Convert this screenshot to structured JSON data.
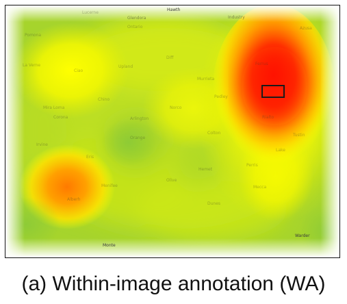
{
  "figure": {
    "caption": "(a) Within-image annotation (WA)"
  },
  "map": {
    "labels_major": [
      "Hawth",
      "Glendora",
      "Industry",
      "Monte",
      "Warder"
    ],
    "labels_minor": [
      "Lucerne",
      "Pomona",
      "Ontario",
      "Azusa",
      "La Verne",
      "Ciao",
      "Upland",
      "Diff",
      "Murrieta",
      "Ferrus",
      "Pedley",
      "Chino",
      "Mira Loma",
      "Norco",
      "Corona",
      "Arlington",
      "Rialto",
      "Colton",
      "Orange",
      "Tustin",
      "Irvine",
      "Lake",
      "Eris",
      "Perris",
      "Hemet",
      "Olive",
      "Menifee",
      "Mecca",
      "Dunes",
      "Alberh"
    ]
  },
  "heatmap": {
    "colorscale": [
      "#ffffff",
      "#7cc242",
      "#c8e61e",
      "#ffff00",
      "#ffa500",
      "#ff0000"
    ],
    "hotspots": [
      {
        "name": "upper-right",
        "intensity": 1.0
      },
      {
        "name": "lower-left",
        "intensity": 0.8
      },
      {
        "name": "upper-left",
        "intensity": 0.45
      },
      {
        "name": "center-right",
        "intensity": 0.55
      }
    ]
  }
}
